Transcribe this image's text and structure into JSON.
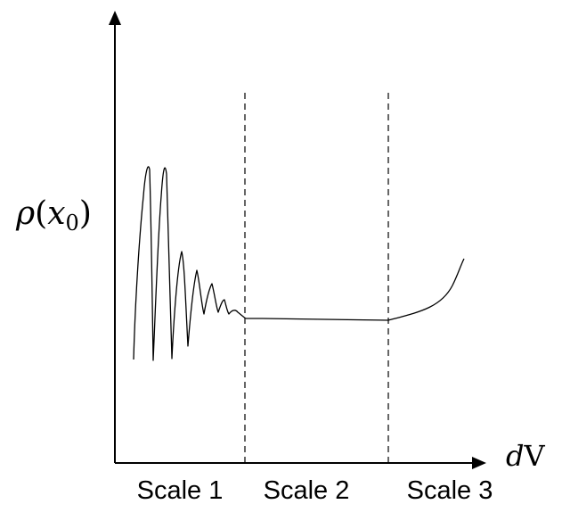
{
  "y_label": {
    "symbol": "ρ",
    "open": "(",
    "var": "x",
    "subscript": "0",
    "close": ")"
  },
  "x_label": {
    "italic_part": "d",
    "roman_part": "V"
  },
  "regions": [
    {
      "label": "Scale 1"
    },
    {
      "label": "Scale 2"
    },
    {
      "label": "Scale 3"
    }
  ],
  "colors": {
    "ink": "#000000",
    "background": "#ffffff"
  }
}
